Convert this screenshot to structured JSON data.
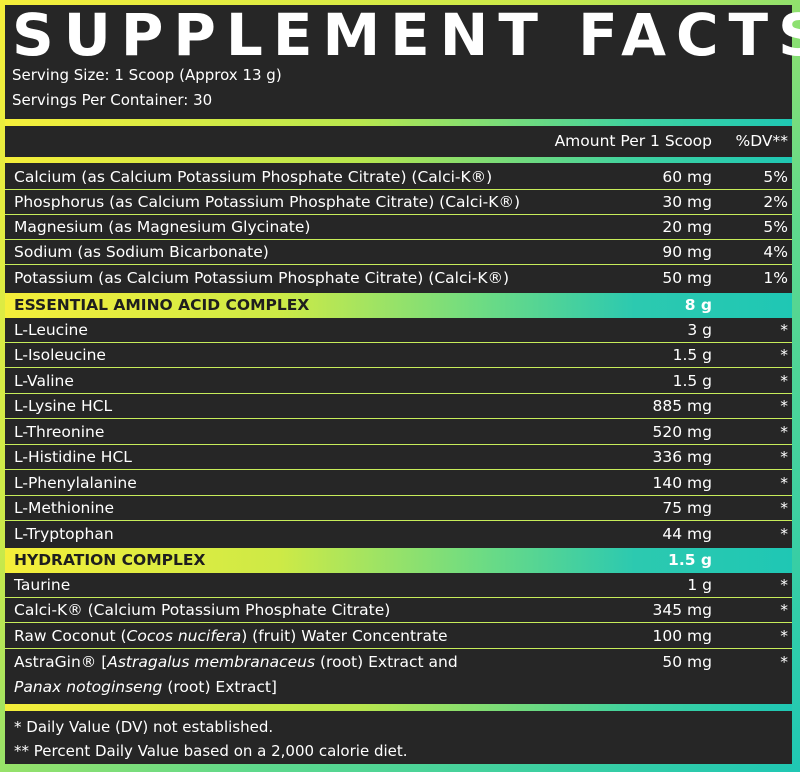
{
  "title": "SUPPLEMENT FACTS",
  "serving_size": "Serving Size: 1 Scoop (Approx 13 g)",
  "servings_per_container": "Servings Per Container: 30",
  "header": {
    "amount": "Amount Per 1 Scoop",
    "dv": "%DV**"
  },
  "minerals": [
    {
      "name": "Calcium (as Calcium Potassium Phosphate Citrate) (Calci-K®)",
      "amount": "60 mg",
      "dv": "5%"
    },
    {
      "name": "Phosphorus (as Calcium Potassium Phosphate Citrate) (Calci-K®)",
      "amount": "30 mg",
      "dv": "2%"
    },
    {
      "name": "Magnesium (as Magnesium Glycinate)",
      "amount": "20 mg",
      "dv": "5%"
    },
    {
      "name": "Sodium (as Sodium Bicarbonate)",
      "amount": "90 mg",
      "dv": "4%"
    },
    {
      "name": "Potassium (as Calcium Potassium Phosphate Citrate) (Calci-K®)",
      "amount": "50 mg",
      "dv": "1%"
    }
  ],
  "eaa": {
    "name": "ESSENTIAL AMINO ACID COMPLEX",
    "amount": "8 g",
    "items": [
      {
        "name": "L-Leucine",
        "amount": "3 g",
        "dv": "*"
      },
      {
        "name": "L-Isoleucine",
        "amount": "1.5 g",
        "dv": "*"
      },
      {
        "name": "L-Valine",
        "amount": "1.5 g",
        "dv": "*"
      },
      {
        "name": "L-Lysine HCL",
        "amount": "885 mg",
        "dv": "*"
      },
      {
        "name": "L-Threonine",
        "amount": "520 mg",
        "dv": "*"
      },
      {
        "name": "L-Histidine HCL",
        "amount": "336 mg",
        "dv": "*"
      },
      {
        "name": "L-Phenylalanine",
        "amount": "140 mg",
        "dv": "*"
      },
      {
        "name": "L-Methionine",
        "amount": "75 mg",
        "dv": "*"
      },
      {
        "name": "L-Tryptophan",
        "amount": "44 mg",
        "dv": "*"
      }
    ]
  },
  "hydration": {
    "name": "HYDRATION COMPLEX",
    "amount": "1.5 g",
    "items": [
      {
        "name": "Taurine",
        "amount": "1 g",
        "dv": "*"
      },
      {
        "name": "Calci-K® (Calcium Potassium Phosphate Citrate)",
        "amount": "345 mg",
        "dv": "*"
      }
    ],
    "coconut": {
      "pre": "Raw Coconut (",
      "italic": "Cocos nucifera",
      "post": ") (fruit) Water Concentrate",
      "amount": "100 mg",
      "dv": "*"
    },
    "astragin": {
      "pre": "AstraGin® [",
      "italic1": "Astragalus membranaceus",
      "mid": " (root) Extract and",
      "italic2": "Panax notoginseng",
      "post": " (root) Extract]",
      "amount": "50 mg",
      "dv": "*"
    }
  },
  "footnotes": {
    "dv_note": "* Daily Value (DV) not established.",
    "percent_note": "** Percent Daily Value based on a 2,000 calorie diet."
  },
  "colors": {
    "background": "#262626",
    "gradient_start": "#f5ee3a",
    "gradient_end": "#1fc7b4"
  }
}
